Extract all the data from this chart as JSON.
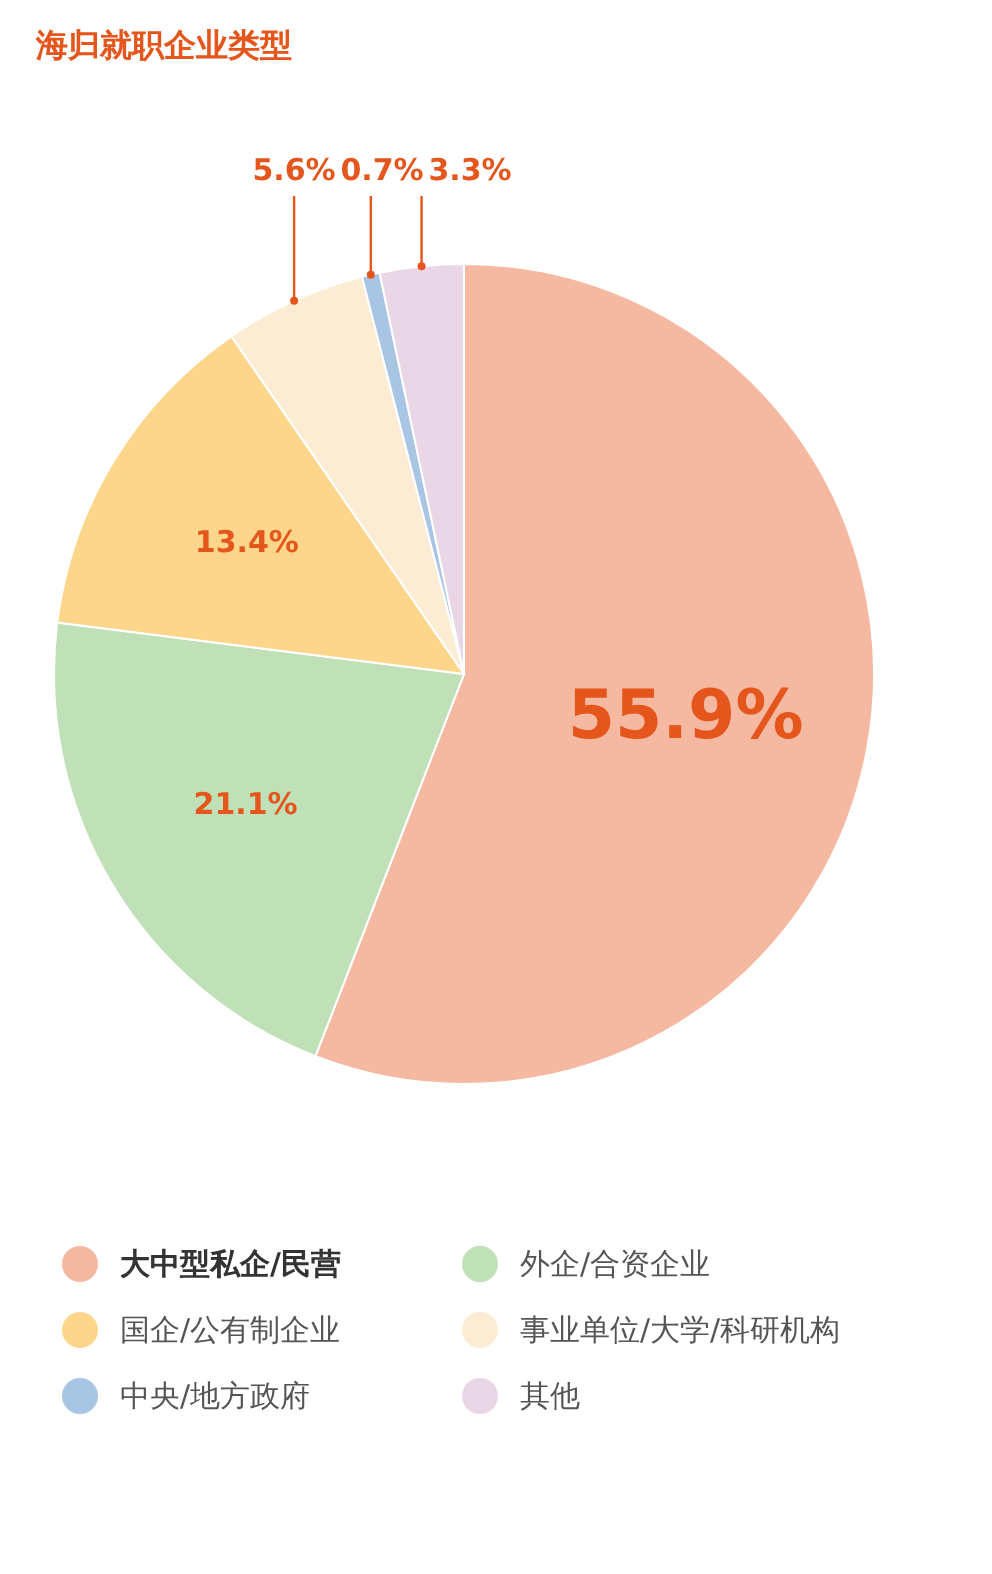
{
  "chart_data": {
    "type": "pie",
    "title": "海归就职企业类型",
    "categories": [
      "大中型私企/民营",
      "外企/合资企业",
      "国企/公有制企业",
      "事业单位/大学/科研机构",
      "中央/地方政府",
      "其他"
    ],
    "values": [
      55.9,
      21.1,
      13.4,
      5.6,
      0.7,
      3.3
    ],
    "colors": [
      "#f5b9a1",
      "#c0e0b8",
      "#fdd68c",
      "#fdecd4",
      "#a8c5e3",
      "#e9d7e7"
    ],
    "value_labels": [
      "55.9%",
      "21.1%",
      "13.4%",
      "5.6%",
      "0.7%",
      "3.3%"
    ],
    "legend": "bottom"
  }
}
